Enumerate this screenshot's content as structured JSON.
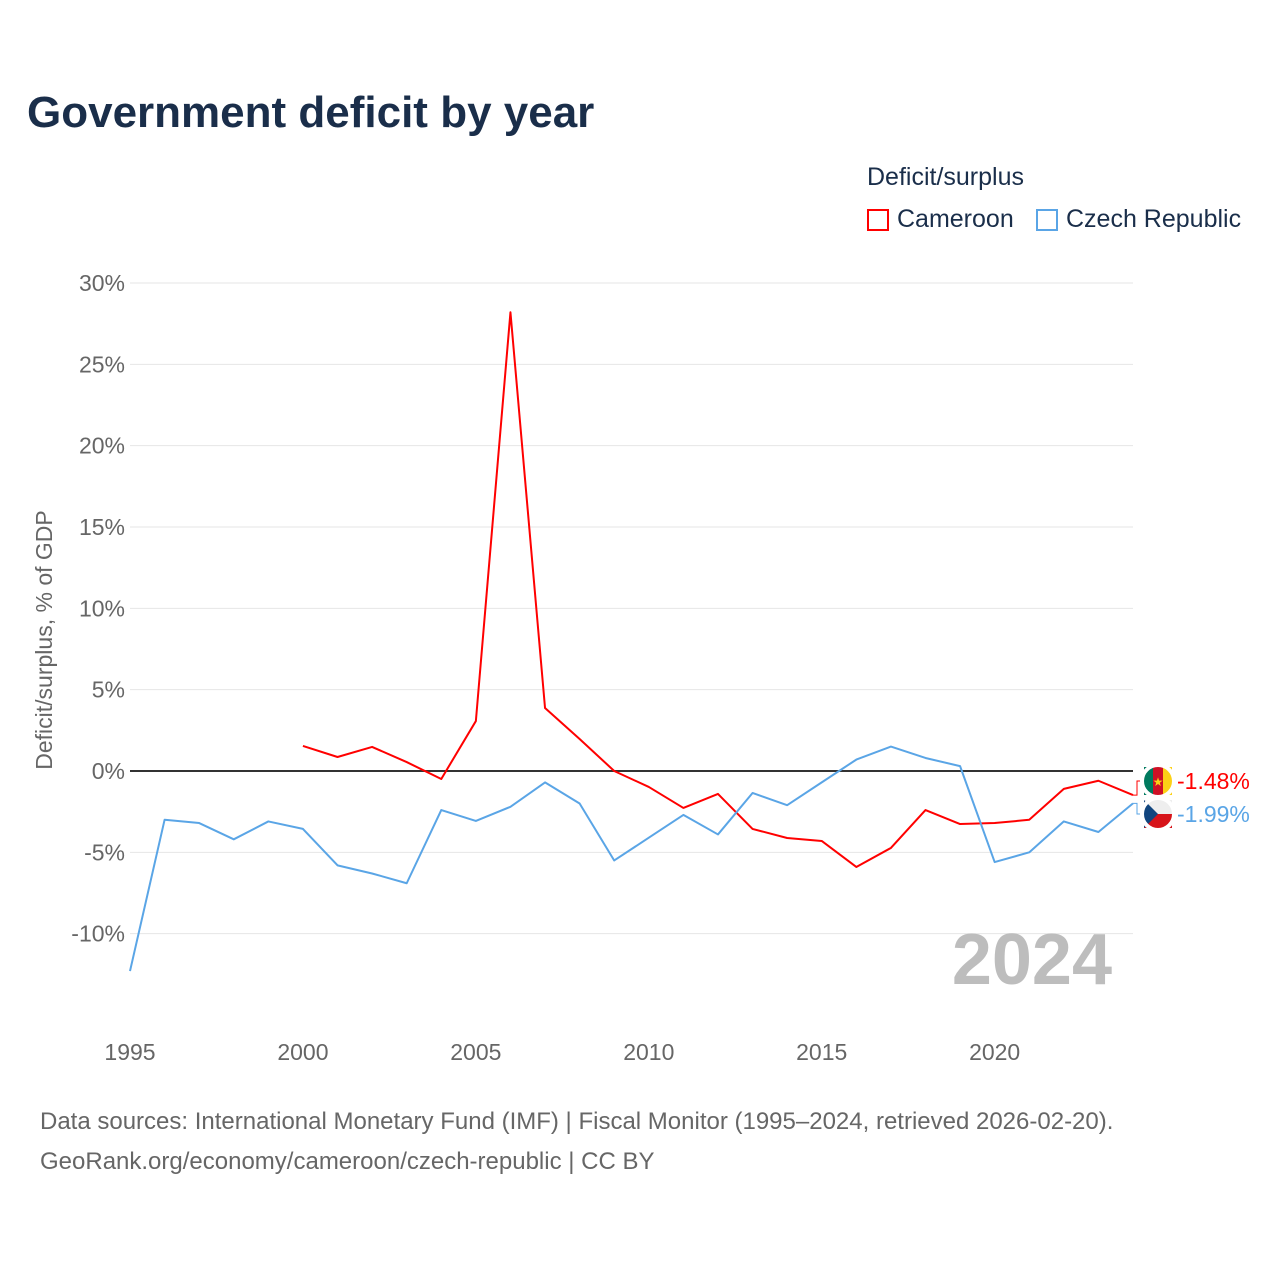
{
  "title": "Government deficit by year",
  "legend": {
    "title": "Deficit/surplus",
    "items": [
      {
        "name": "Cameroon",
        "color": "#ff0000"
      },
      {
        "name": "Czech Republic",
        "color": "#5aa5e6"
      }
    ]
  },
  "sources": {
    "line1": "Data sources: International Monetary Fund (IMF) | Fiscal Monitor (1995–2024, retrieved 2026-02-20).",
    "line2": "GeoRank.org/economy/cameroon/czech-republic | CC BY"
  },
  "chart_data": {
    "type": "line",
    "title": "Government deficit by year",
    "ylabel": "Deficit/surplus, % of GDP",
    "xlabel": "",
    "xlim": [
      1995,
      2024
    ],
    "ylim": [
      -12.5,
      30
    ],
    "xticks": [
      1995,
      2000,
      2005,
      2010,
      2015,
      2020
    ],
    "yticks": [
      30,
      25,
      20,
      15,
      10,
      5,
      0,
      -5,
      -10
    ],
    "ytick_labels": [
      "30%",
      "25%",
      "20%",
      "15%",
      "10%",
      "5%",
      "0%",
      "-5%",
      "-10%"
    ],
    "watermark_year": "2024",
    "series": [
      {
        "name": "Cameroon",
        "color": "#ff0000",
        "end_label": "-1.48%",
        "x": [
          2000,
          2001,
          2002,
          2003,
          2004,
          2005,
          2006,
          2007,
          2008,
          2009,
          2010,
          2011,
          2012,
          2013,
          2014,
          2015,
          2016,
          2017,
          2018,
          2019,
          2020,
          2021,
          2022,
          2023,
          2024
        ],
        "values": [
          1.54,
          0.86,
          1.48,
          0.55,
          -0.49,
          3.07,
          28.2,
          3.87,
          1.97,
          0.0,
          -0.98,
          -2.27,
          -1.41,
          -3.56,
          -4.12,
          -4.3,
          -5.9,
          -4.73,
          -2.4,
          -3.26,
          -3.2,
          -3.0,
          -1.1,
          -0.6,
          -1.48
        ]
      },
      {
        "name": "Czech Republic",
        "color": "#5aa5e6",
        "end_label": "-1.99%",
        "x": [
          1995,
          1996,
          1997,
          1998,
          1999,
          2000,
          2001,
          2002,
          2003,
          2004,
          2005,
          2006,
          2007,
          2008,
          2009,
          2010,
          2011,
          2012,
          2013,
          2014,
          2015,
          2016,
          2017,
          2018,
          2019,
          2020,
          2021,
          2022,
          2023,
          2024
        ],
        "values": [
          -12.3,
          -3.0,
          -3.2,
          -4.2,
          -3.1,
          -3.56,
          -5.8,
          -6.3,
          -6.9,
          -2.4,
          -3.07,
          -2.2,
          -0.7,
          -2.0,
          -5.5,
          -4.1,
          -2.7,
          -3.9,
          -1.35,
          -2.1,
          -0.7,
          0.7,
          1.5,
          0.8,
          0.3,
          -5.6,
          -5.0,
          -3.1,
          -3.75,
          -1.99
        ]
      }
    ]
  }
}
